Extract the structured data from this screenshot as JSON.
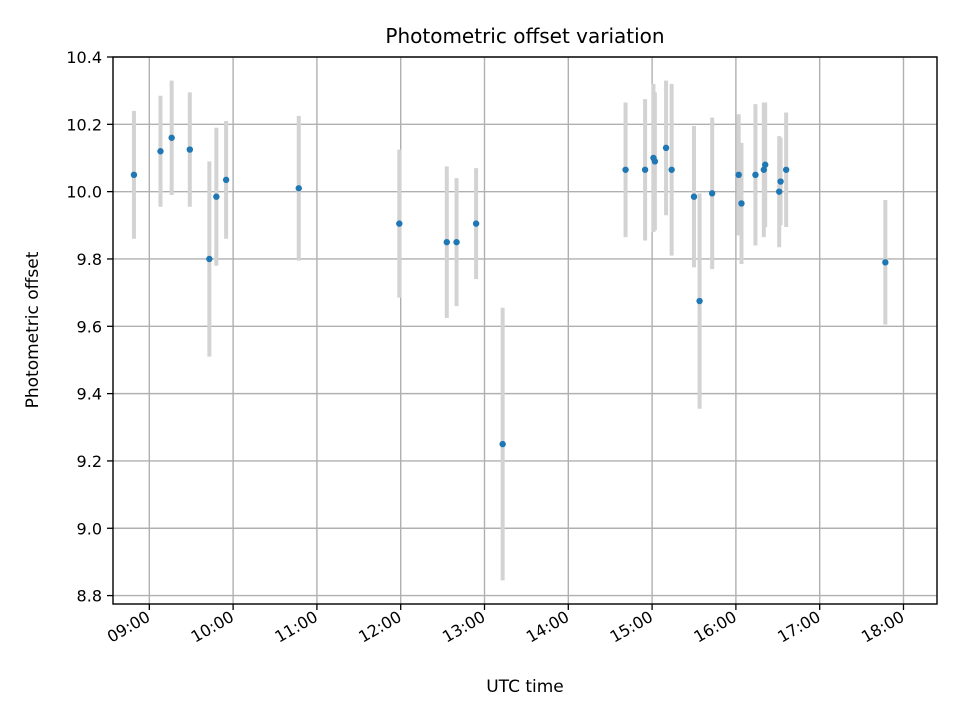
{
  "chart_data": {
    "type": "scatter",
    "title": "Photometric offset variation",
    "xlabel": "UTC time",
    "ylabel": "Photometric offset",
    "x_ticks": [
      "09:00",
      "10:00",
      "11:00",
      "12:00",
      "13:00",
      "14:00",
      "15:00",
      "16:00",
      "17:00",
      "18:00"
    ],
    "y_ticks": [
      "8.8",
      "9.0",
      "9.2",
      "9.4",
      "9.6",
      "9.8",
      "10.0",
      "10.2",
      "10.4"
    ],
    "xlim": [
      "08:34",
      "18:24"
    ],
    "ylim": [
      8.775,
      10.4
    ],
    "grid": true,
    "point_color": "#1f77b4",
    "errorbar_color": "#d3d3d3",
    "points": [
      {
        "x": "08:49",
        "y": 10.05,
        "err": 0.19
      },
      {
        "x": "09:08",
        "y": 10.12,
        "err": 0.165
      },
      {
        "x": "09:16",
        "y": 10.16,
        "err": 0.17
      },
      {
        "x": "09:29",
        "y": 10.125,
        "err": 0.17
      },
      {
        "x": "09:43",
        "y": 9.8,
        "err": 0.29
      },
      {
        "x": "09:48",
        "y": 9.985,
        "err": 0.205
      },
      {
        "x": "09:55",
        "y": 10.035,
        "err": 0.175
      },
      {
        "x": "10:47",
        "y": 10.01,
        "err": 0.215
      },
      {
        "x": "11:59",
        "y": 9.905,
        "err": 0.22
      },
      {
        "x": "12:33",
        "y": 9.85,
        "err": 0.225
      },
      {
        "x": "12:40",
        "y": 9.85,
        "err": 0.19
      },
      {
        "x": "12:54",
        "y": 9.905,
        "err": 0.165
      },
      {
        "x": "13:13",
        "y": 9.25,
        "err": 0.405
      },
      {
        "x": "14:41",
        "y": 10.065,
        "err": 0.2
      },
      {
        "x": "14:55",
        "y": 10.065,
        "err": 0.21
      },
      {
        "x": "15:01",
        "y": 10.1,
        "err": 0.22
      },
      {
        "x": "15:02",
        "y": 10.09,
        "err": 0.205
      },
      {
        "x": "15:10",
        "y": 10.13,
        "err": 0.2
      },
      {
        "x": "15:14",
        "y": 10.065,
        "err": 0.255
      },
      {
        "x": "15:30",
        "y": 9.985,
        "err": 0.21
      },
      {
        "x": "15:34",
        "y": 9.675,
        "err": 0.32
      },
      {
        "x": "15:43",
        "y": 9.995,
        "err": 0.225
      },
      {
        "x": "16:02",
        "y": 10.05,
        "err": 0.18
      },
      {
        "x": "16:04",
        "y": 9.965,
        "err": 0.18
      },
      {
        "x": "16:14",
        "y": 10.05,
        "err": 0.21
      },
      {
        "x": "16:20",
        "y": 10.065,
        "err": 0.2
      },
      {
        "x": "16:21",
        "y": 10.08,
        "err": 0.185
      },
      {
        "x": "16:31",
        "y": 10.0,
        "err": 0.165
      },
      {
        "x": "16:32",
        "y": 10.03,
        "err": 0.13
      },
      {
        "x": "16:36",
        "y": 10.065,
        "err": 0.17
      },
      {
        "x": "17:47",
        "y": 9.79,
        "err": 0.185
      }
    ]
  }
}
